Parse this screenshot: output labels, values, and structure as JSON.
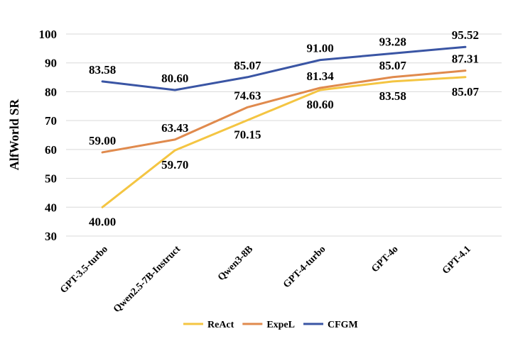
{
  "chart_data": {
    "type": "line",
    "title": "",
    "xlabel": "",
    "ylabel": "AlfWorld SR",
    "ylim": [
      30,
      100
    ],
    "yticks": [
      30,
      40,
      50,
      60,
      70,
      80,
      90,
      100
    ],
    "grid": true,
    "legend_position": "bottom",
    "categories": [
      "GPT-3.5-turbo",
      "Qwen2.5-7B-Instruct",
      "Qwen3-8B",
      "GPT-4-turbo",
      "GPT-4o",
      "GPT-4.1"
    ],
    "series": [
      {
        "name": "ReAct",
        "color": "#f4c542",
        "values": [
          40.0,
          59.7,
          70.15,
          80.6,
          83.58,
          85.07
        ],
        "labels": [
          "40.00",
          "59.70",
          "70.15",
          "80.60",
          "83.58",
          "85.07"
        ]
      },
      {
        "name": "ExpeL",
        "color": "#e08a4d",
        "values": [
          59.0,
          63.43,
          74.63,
          81.34,
          85.07,
          87.31
        ],
        "labels": [
          "59.00",
          "63.43",
          "74.63",
          "81.34",
          "85.07",
          "87.31"
        ]
      },
      {
        "name": "CFGM",
        "color": "#3a55a4",
        "values": [
          83.58,
          80.6,
          85.07,
          91.0,
          93.28,
          95.52
        ],
        "labels": [
          "83.58",
          "80.60",
          "85.07",
          "91.00",
          "93.28",
          "95.52"
        ]
      }
    ]
  }
}
